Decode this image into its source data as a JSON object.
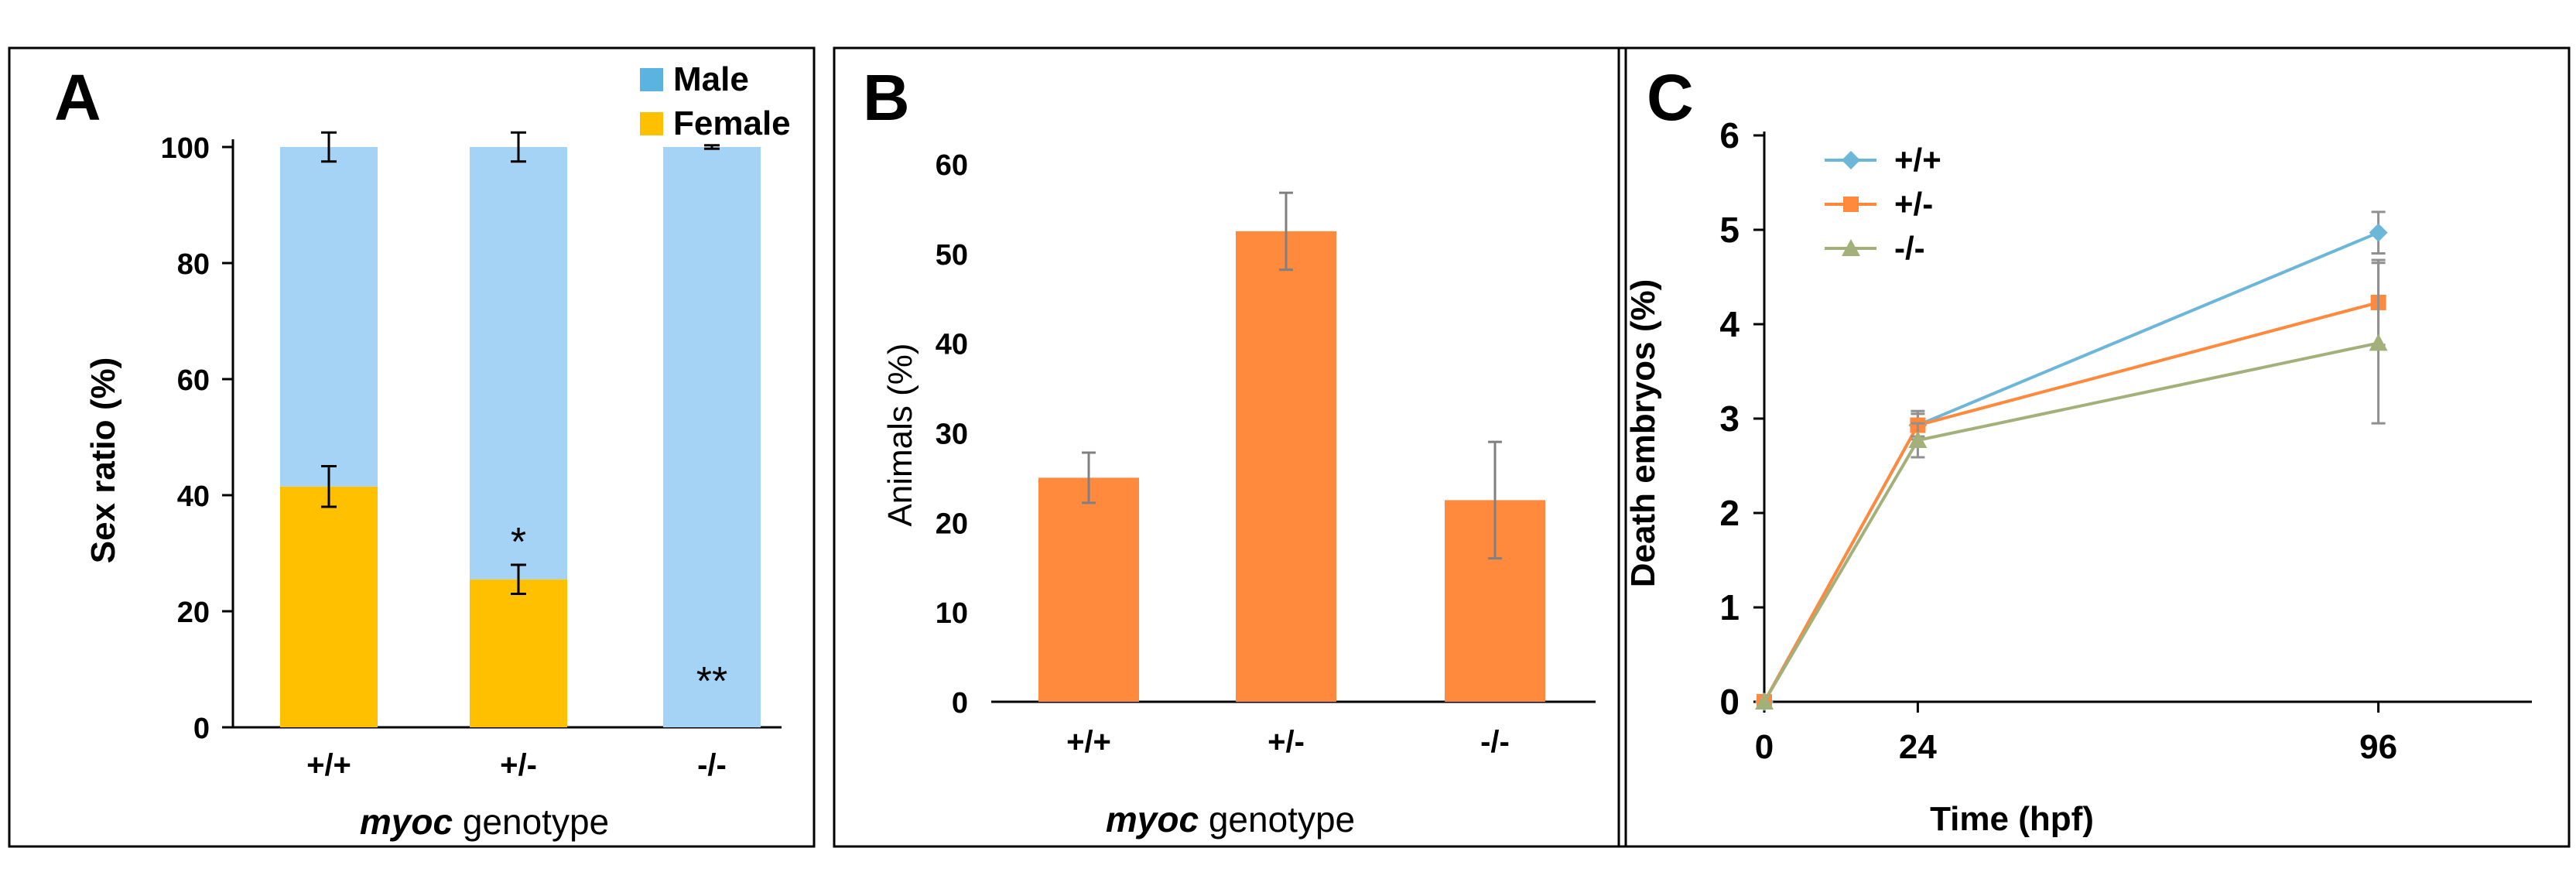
{
  "chart_data": [
    {
      "panel": "A",
      "type": "bar",
      "stacked": true,
      "categories": [
        "+/+",
        "+/-",
        "-/-"
      ],
      "series": [
        {
          "name": "Female",
          "values": [
            41.5,
            25.5,
            0
          ],
          "errors": [
            3.5,
            2.5,
            0
          ],
          "color": "#ffc000"
        },
        {
          "name": "Male",
          "values": [
            58.5,
            74.5,
            100
          ],
          "errors": [
            2.5,
            2.5,
            0.3
          ],
          "color": "#a5d3f5"
        }
      ],
      "legend_swatch_male": "#5bb3e0",
      "legend_swatch_female": "#ffc000",
      "annotations": [
        {
          "category": "+/-",
          "text": "*",
          "at_value": 32
        },
        {
          "category": "-/-",
          "text": "**",
          "at_value": 8
        }
      ],
      "ylabel": "Sex ratio (%)",
      "xlabel_italic": "myoc",
      "xlabel_rest": " genotype",
      "ylim": [
        0,
        100
      ],
      "yticks": [
        0,
        20,
        40,
        60,
        80,
        100
      ],
      "legend_position": "top-right"
    },
    {
      "panel": "B",
      "type": "bar",
      "categories": [
        "+/+",
        "+/-",
        "-/-"
      ],
      "values": [
        25,
        52.5,
        22.5
      ],
      "errors": [
        2.8,
        4.3,
        6.5
      ],
      "color": "#ff8a3d",
      "ylabel": "Animals (%)",
      "xlabel_italic": "myoc",
      "xlabel_rest": " genotype",
      "ylim": [
        0,
        60
      ],
      "yticks": [
        0,
        10,
        20,
        30,
        40,
        50,
        60
      ]
    },
    {
      "panel": "C",
      "type": "line",
      "x": [
        0,
        24,
        96
      ],
      "series": [
        {
          "name": "+/+",
          "values": [
            0,
            2.93,
            4.97
          ],
          "errors": [
            0,
            0.15,
            0.22
          ],
          "color": "#6cb6d8",
          "marker": "diamond"
        },
        {
          "name": "+/-",
          "values": [
            0,
            2.93,
            4.23
          ],
          "errors": [
            0,
            0.12,
            0.45
          ],
          "color": "#ff8a3d",
          "marker": "square"
        },
        {
          "name": "-/-",
          "values": [
            0,
            2.77,
            3.8
          ],
          "errors": [
            0,
            0.18,
            0.85
          ],
          "color": "#a3b07a",
          "marker": "triangle"
        }
      ],
      "ylabel": "Death embryos (%)",
      "xlabel": "Time (hpf)",
      "xlim": [
        0,
        120
      ],
      "xticks": [
        0,
        24,
        96
      ],
      "ylim": [
        0,
        6
      ],
      "yticks": [
        0,
        1,
        2,
        3,
        4,
        5,
        6
      ],
      "legend_position": "top-left"
    }
  ]
}
